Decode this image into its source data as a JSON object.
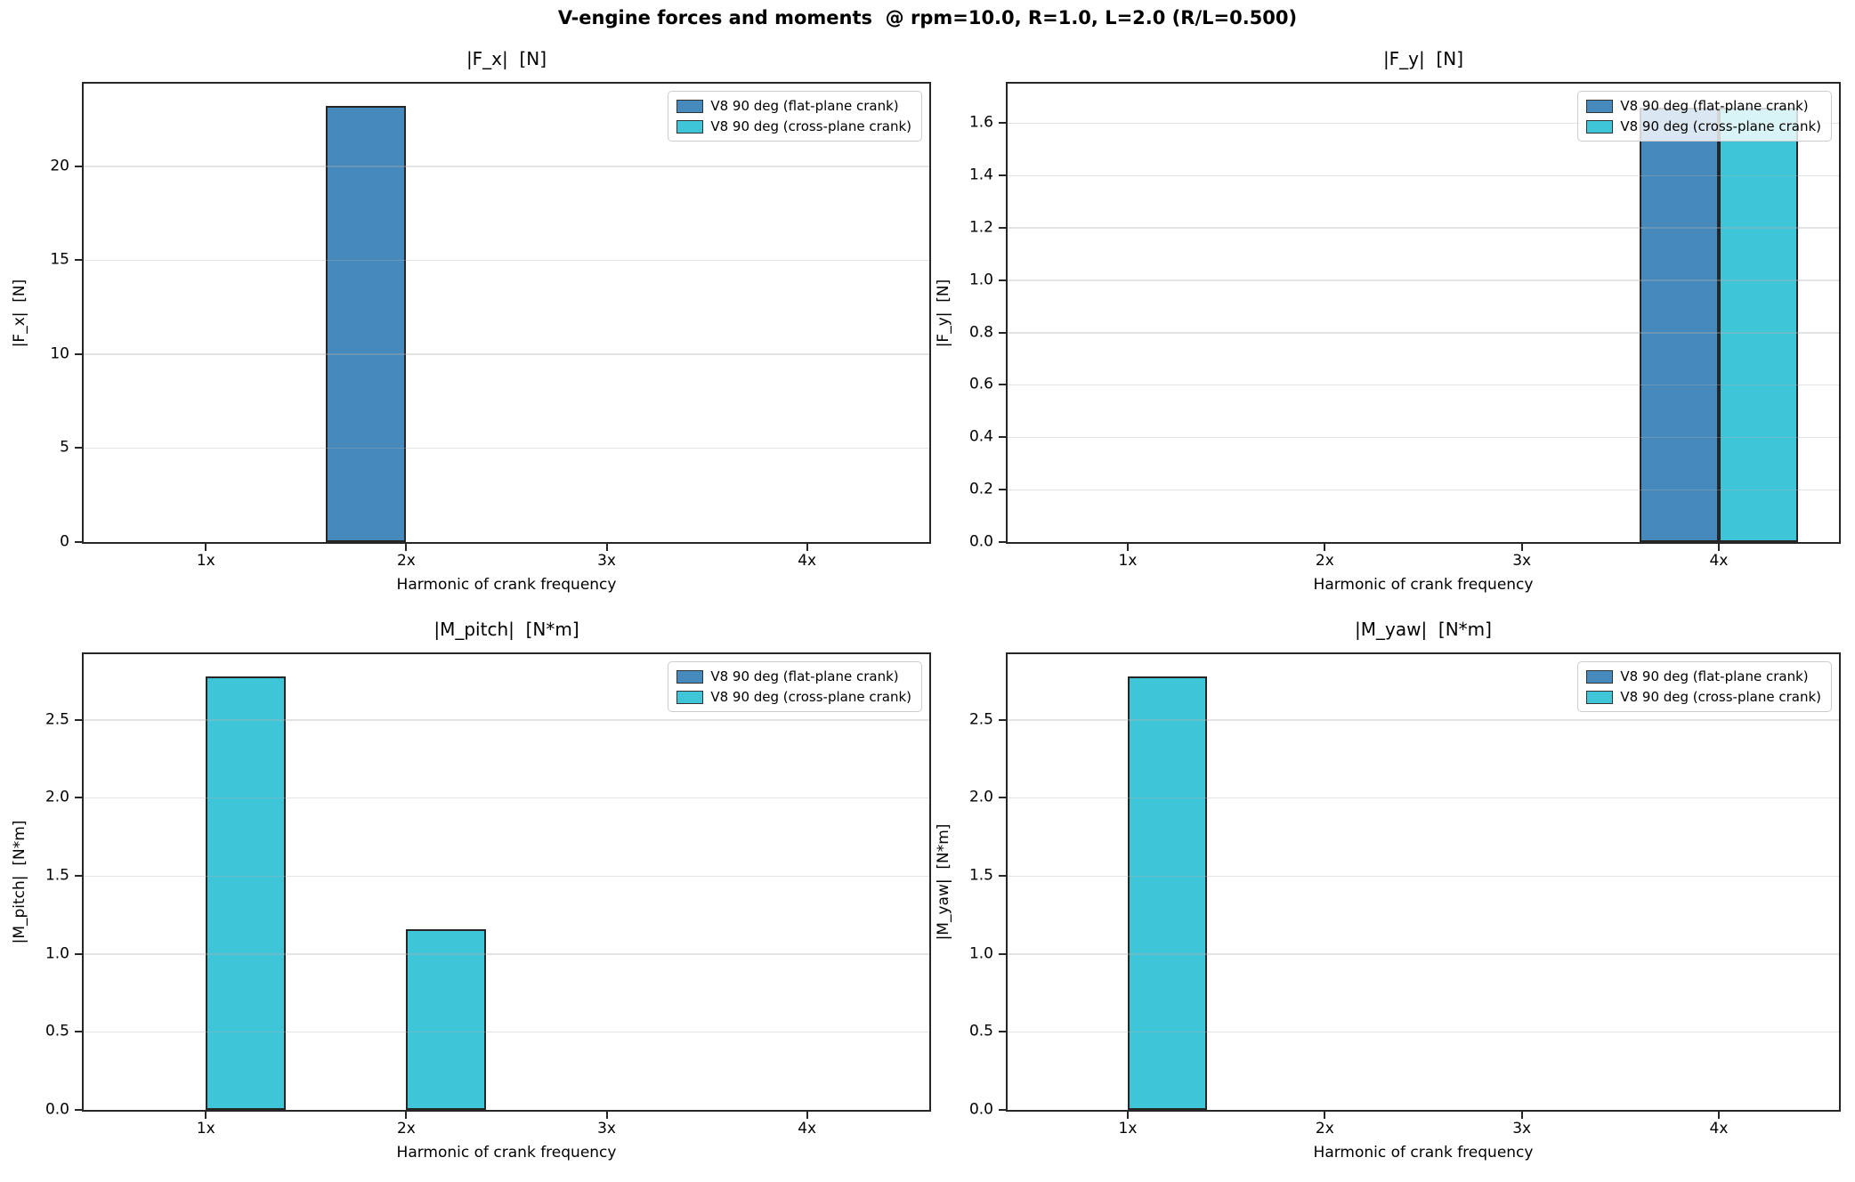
{
  "figure": {
    "suptitle": "V-engine forces and moments  @ rpm=10.0, R=1.0, L=2.0 (R/L=0.500)",
    "background": "#ffffff"
  },
  "colors": {
    "flat_plane": "#4589BD",
    "cross_plane": "#3EC6D8",
    "bar_edge": "#262626",
    "spine": "#262626",
    "grid": "#b0b0b0",
    "legend_border": "#cccccc"
  },
  "legend_labels": [
    "V8 90 deg (flat-plane crank)",
    "V8 90 deg (cross-plane crank)"
  ],
  "chart_data": [
    {
      "type": "bar",
      "title": "|F_x|  [N]",
      "ylabel": "|F_x|  [N]",
      "xlabel": "Harmonic of crank frequency",
      "categories": [
        "1x",
        "2x",
        "3x",
        "4x"
      ],
      "series": [
        {
          "name": "V8 90 deg (flat-plane crank)",
          "color": "#4589BD",
          "values": [
            0,
            23.2,
            0,
            0
          ]
        },
        {
          "name": "V8 90 deg (cross-plane crank)",
          "color": "#3EC6D8",
          "values": [
            0,
            0,
            0,
            0
          ]
        }
      ],
      "yticks": [
        0,
        5,
        10,
        15,
        20
      ],
      "ytick_labels": [
        "0",
        "5",
        "10",
        "15",
        "20"
      ],
      "ylim": [
        0,
        24.4
      ],
      "xlim": [
        0.39,
        4.61
      ],
      "bar_width": 0.4,
      "grid": "y",
      "legend_position": "upper right"
    },
    {
      "type": "bar",
      "title": "|F_y|  [N]",
      "ylabel": "|F_y|  [N]",
      "xlabel": "Harmonic of crank frequency",
      "categories": [
        "1x",
        "2x",
        "3x",
        "4x"
      ],
      "series": [
        {
          "name": "V8 90 deg (flat-plane crank)",
          "color": "#4589BD",
          "values": [
            0,
            0,
            0,
            1.66
          ]
        },
        {
          "name": "V8 90 deg (cross-plane crank)",
          "color": "#3EC6D8",
          "values": [
            0,
            0,
            0,
            1.66
          ]
        }
      ],
      "yticks": [
        0,
        0.2,
        0.4,
        0.6,
        0.8,
        1.0,
        1.2,
        1.4,
        1.6
      ],
      "ytick_labels": [
        "0.0",
        "0.2",
        "0.4",
        "0.6",
        "0.8",
        "1.0",
        "1.2",
        "1.4",
        "1.6"
      ],
      "ylim": [
        0,
        1.75
      ],
      "xlim": [
        0.39,
        4.61
      ],
      "bar_width": 0.4,
      "grid": "y",
      "legend_position": "upper right"
    },
    {
      "type": "bar",
      "title": "|M_pitch|  [N*m]",
      "ylabel": "|M_pitch|  [N*m]",
      "xlabel": "Harmonic of crank frequency",
      "categories": [
        "1x",
        "2x",
        "3x",
        "4x"
      ],
      "series": [
        {
          "name": "V8 90 deg (flat-plane crank)",
          "color": "#4589BD",
          "values": [
            0,
            0,
            0,
            0
          ]
        },
        {
          "name": "V8 90 deg (cross-plane crank)",
          "color": "#3EC6D8",
          "values": [
            2.78,
            1.16,
            0,
            0
          ]
        }
      ],
      "yticks": [
        0,
        0.5,
        1.0,
        1.5,
        2.0,
        2.5
      ],
      "ytick_labels": [
        "0.0",
        "0.5",
        "1.0",
        "1.5",
        "2.0",
        "2.5"
      ],
      "ylim": [
        0,
        2.92
      ],
      "xlim": [
        0.39,
        4.61
      ],
      "bar_width": 0.4,
      "grid": "y",
      "legend_position": "upper right"
    },
    {
      "type": "bar",
      "title": "|M_yaw|  [N*m]",
      "ylabel": "|M_yaw|  [N*m]",
      "xlabel": "Harmonic of crank frequency",
      "categories": [
        "1x",
        "2x",
        "3x",
        "4x"
      ],
      "series": [
        {
          "name": "V8 90 deg (flat-plane crank)",
          "color": "#4589BD",
          "values": [
            0,
            0,
            0,
            0
          ]
        },
        {
          "name": "V8 90 deg (cross-plane crank)",
          "color": "#3EC6D8",
          "values": [
            2.78,
            0,
            0,
            0
          ]
        }
      ],
      "yticks": [
        0,
        0.5,
        1.0,
        1.5,
        2.0,
        2.5
      ],
      "ytick_labels": [
        "0.0",
        "0.5",
        "1.0",
        "1.5",
        "2.0",
        "2.5"
      ],
      "ylim": [
        0,
        2.92
      ],
      "xlim": [
        0.39,
        4.61
      ],
      "bar_width": 0.4,
      "grid": "y",
      "legend_position": "upper right"
    }
  ]
}
